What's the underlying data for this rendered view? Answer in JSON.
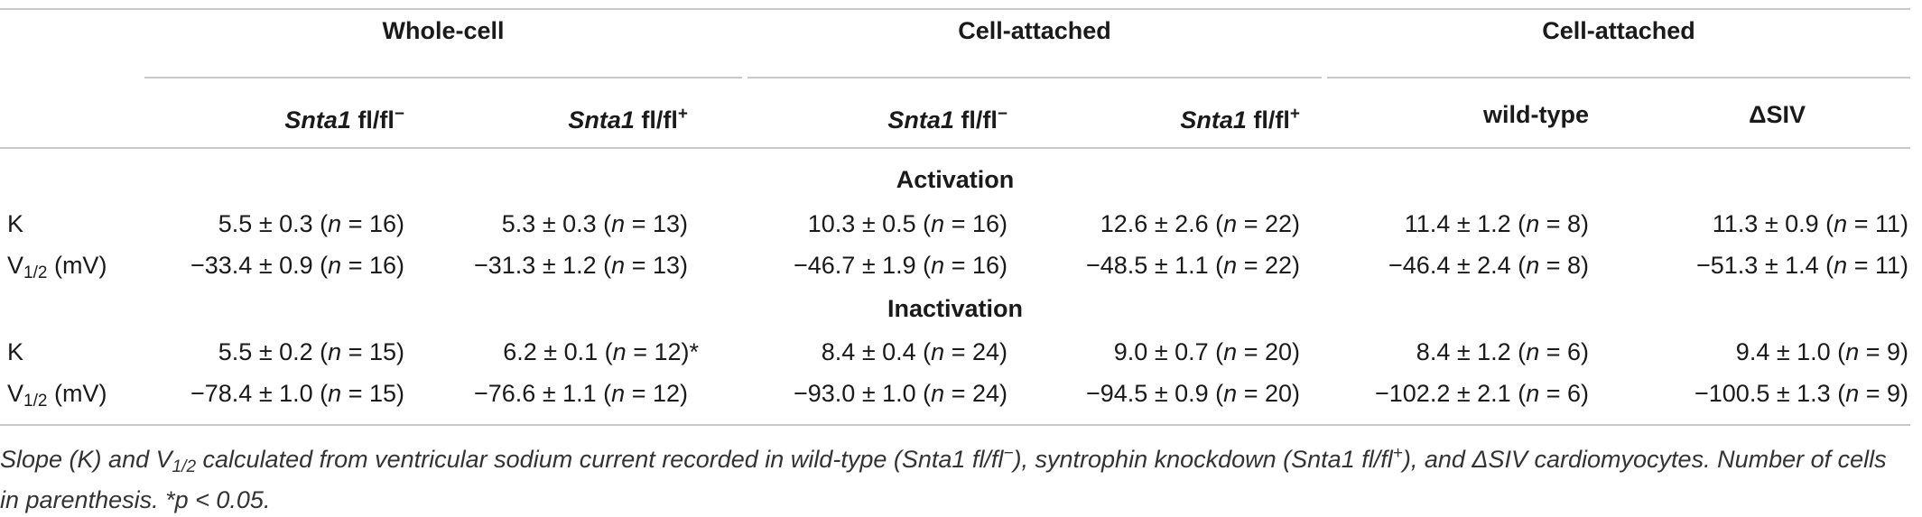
{
  "table": {
    "groups": [
      "Whole-cell",
      "Cell-attached",
      "Cell-attached"
    ],
    "columns": [
      {
        "gene": "Snta1",
        "suffix": "fl/fl",
        "sign": "−"
      },
      {
        "gene": "Snta1",
        "suffix": "fl/fl",
        "sign": "+"
      },
      {
        "gene": "Snta1",
        "suffix": "fl/fl",
        "sign": "−"
      },
      {
        "gene": "Snta1",
        "suffix": "fl/fl",
        "sign": "+"
      },
      {
        "label": "wild-type"
      },
      {
        "label": "ΔSIV"
      }
    ],
    "sections": [
      {
        "title": "Activation",
        "rows": [
          {
            "label": "K",
            "cells": [
              {
                "value": "5.5 ± 0.3",
                "n": "16"
              },
              {
                "value": "5.3 ± 0.3",
                "n": "13"
              },
              {
                "value": "10.3 ± 0.5",
                "n": "16"
              },
              {
                "value": "12.6 ± 2.6",
                "n": "22"
              },
              {
                "value": "11.4 ± 1.2",
                "n": "8"
              },
              {
                "value": "11.3 ± 0.9",
                "n": "11"
              }
            ]
          },
          {
            "label": "V",
            "label_sub": "1/2",
            "label_unit": "(mV)",
            "cells": [
              {
                "value": "−33.4 ± 0.9",
                "n": "16"
              },
              {
                "value": "−31.3 ± 1.2",
                "n": "13"
              },
              {
                "value": "−46.7 ± 1.9",
                "n": "16"
              },
              {
                "value": "−48.5 ± 1.1",
                "n": "22"
              },
              {
                "value": "−46.4 ± 2.4",
                "n": "8"
              },
              {
                "value": "−51.3 ± 1.4",
                "n": "11"
              }
            ]
          }
        ]
      },
      {
        "title": "Inactivation",
        "rows": [
          {
            "label": "K",
            "cells": [
              {
                "value": "5.5 ± 0.2",
                "n": "15"
              },
              {
                "value": "6.2 ± 0.1",
                "n": "12",
                "mark": "*"
              },
              {
                "value": "8.4 ± 0.4",
                "n": "24"
              },
              {
                "value": "9.0 ± 0.7",
                "n": "20"
              },
              {
                "value": "8.4 ± 1.2",
                "n": "6"
              },
              {
                "value": "9.4 ± 1.0",
                "n": "9"
              }
            ]
          },
          {
            "label": "V",
            "label_sub": "1/2",
            "label_unit": "(mV)",
            "cells": [
              {
                "value": "−78.4 ± 1.0",
                "n": "15"
              },
              {
                "value": "−76.6 ± 1.1",
                "n": "12"
              },
              {
                "value": "−93.0 ± 1.0",
                "n": "24"
              },
              {
                "value": "−94.5 ± 0.9",
                "n": "20"
              },
              {
                "value": "−102.2 ± 2.1",
                "n": "6"
              },
              {
                "value": "−100.5 ± 1.3",
                "n": "9"
              }
            ]
          }
        ]
      }
    ],
    "n_symbol": "n",
    "caption": {
      "p1": "Slope (K) and V",
      "p1_sub": "1/2",
      "p2": " calculated from ventricular sodium current recorded in wild-type (Snta1 fl/fl",
      "p2_sup": "−",
      "p3": "), syntrophin knockdown (Snta1 fl/fl",
      "p3_sup": "+",
      "p4": "), and ΔSIV cardiomyocytes. Number of cells in parenthesis. *p < 0.05."
    }
  }
}
